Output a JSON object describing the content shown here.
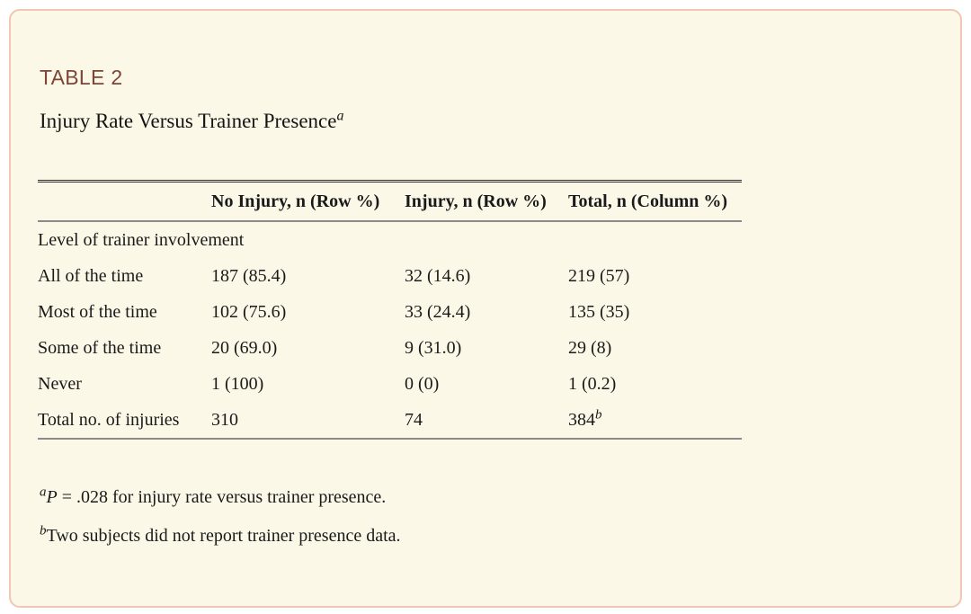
{
  "card": {
    "label": "TABLE 2",
    "title": "Injury Rate Versus Trainer Presence",
    "title_superscript": "a"
  },
  "table": {
    "columns": [
      "",
      "No Injury, n (Row %)",
      "Injury, n (Row %)",
      "Total, n (Column %)"
    ],
    "section_row": "Level of trainer involvement",
    "rows": [
      {
        "label": "All of the time",
        "no_injury": "187 (85.4)",
        "injury": "32 (14.6)",
        "total": "219 (57)"
      },
      {
        "label": "Most of the time",
        "no_injury": "102 (75.6)",
        "injury": "33 (24.4)",
        "total": "135 (35)"
      },
      {
        "label": "Some of the time",
        "no_injury": "20 (69.0)",
        "injury": "9 (31.0)",
        "total": "29 (8)"
      },
      {
        "label": "Never",
        "no_injury": "1 (100)",
        "injury": "0 (0)",
        "total": "1 (0.2)"
      },
      {
        "label": "Total no. of injuries",
        "no_injury": "310",
        "injury": "74",
        "total": "384",
        "total_superscript": "b"
      }
    ]
  },
  "footnotes": [
    {
      "marker": "a",
      "lead_italic": "P",
      "text": " = .028 for injury rate versus trainer presence."
    },
    {
      "marker": "b",
      "lead_italic": "",
      "text": "Two subjects did not report trainer presence data."
    }
  ],
  "colors": {
    "card_background": "#fcf8e7",
    "card_border": "#eec7b5",
    "table_label": "#7c4535",
    "body_text": "#1a1a1a",
    "rule_dark": "#2a2a2a",
    "rule_gray": "#8a8a8a"
  }
}
